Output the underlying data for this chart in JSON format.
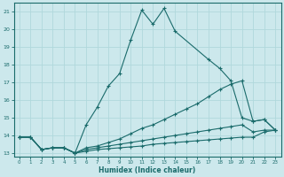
{
  "xlabel": "Humidex (Indice chaleur)",
  "xlim": [
    -0.5,
    23.5
  ],
  "ylim": [
    12.8,
    21.5
  ],
  "yticks": [
    13,
    14,
    15,
    16,
    17,
    18,
    19,
    20,
    21
  ],
  "xticks": [
    0,
    1,
    2,
    3,
    4,
    5,
    6,
    7,
    8,
    9,
    10,
    11,
    12,
    13,
    14,
    15,
    16,
    17,
    18,
    19,
    20,
    21,
    22,
    23
  ],
  "bg_color": "#cce8ec",
  "line_color": "#1a6b6b",
  "grid_color": "#b0d8dc",
  "lines": [
    {
      "x": [
        0,
        1,
        2,
        3,
        4,
        5,
        6,
        7,
        8,
        9,
        10,
        11,
        12,
        13,
        14,
        17,
        18,
        19,
        20,
        21,
        22,
        23
      ],
      "y": [
        13.9,
        13.9,
        13.2,
        13.3,
        13.3,
        13.0,
        14.6,
        15.6,
        16.8,
        17.5,
        19.4,
        21.1,
        20.3,
        21.2,
        19.9,
        18.3,
        17.8,
        17.1,
        15.0,
        14.8,
        14.9,
        14.3
      ]
    },
    {
      "x": [
        0,
        1,
        2,
        3,
        4,
        5,
        6,
        7,
        8,
        9,
        10,
        11,
        12,
        13,
        14,
        15,
        16,
        17,
        18,
        19,
        20,
        21,
        22,
        23
      ],
      "y": [
        13.9,
        13.9,
        13.2,
        13.3,
        13.3,
        13.0,
        13.3,
        13.4,
        13.6,
        13.8,
        14.1,
        14.4,
        14.6,
        14.9,
        15.2,
        15.5,
        15.8,
        16.2,
        16.6,
        16.9,
        17.1,
        14.8,
        14.9,
        14.3
      ]
    },
    {
      "x": [
        0,
        1,
        2,
        3,
        4,
        5,
        6,
        7,
        8,
        9,
        10,
        11,
        12,
        13,
        14,
        15,
        16,
        17,
        18,
        19,
        20,
        21,
        22,
        23
      ],
      "y": [
        13.9,
        13.9,
        13.2,
        13.3,
        13.3,
        13.0,
        13.2,
        13.3,
        13.4,
        13.5,
        13.6,
        13.7,
        13.8,
        13.9,
        14.0,
        14.1,
        14.2,
        14.3,
        14.4,
        14.5,
        14.6,
        14.2,
        14.3,
        14.3
      ]
    },
    {
      "x": [
        0,
        1,
        2,
        3,
        4,
        5,
        6,
        7,
        8,
        9,
        10,
        11,
        12,
        13,
        14,
        15,
        16,
        17,
        18,
        19,
        20,
        21,
        22,
        23
      ],
      "y": [
        13.9,
        13.9,
        13.2,
        13.3,
        13.3,
        13.0,
        13.1,
        13.2,
        13.25,
        13.3,
        13.35,
        13.4,
        13.5,
        13.55,
        13.6,
        13.65,
        13.7,
        13.75,
        13.8,
        13.85,
        13.9,
        13.9,
        14.2,
        14.3
      ]
    }
  ]
}
